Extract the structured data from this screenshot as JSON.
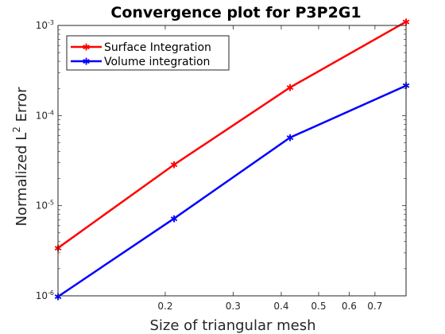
{
  "chart_data": {
    "type": "line",
    "title": "Convergence plot for P3P2G1",
    "xlabel": "Size of triangular mesh",
    "ylabel_main": "Normalized L",
    "ylabel_sup": "2",
    "ylabel_tail": " Error",
    "xscale": "log",
    "yscale": "log",
    "xlim": [
      0.1054,
      0.843
    ],
    "ylim": [
      1e-06,
      0.001
    ],
    "x_tick_values": [
      0.2,
      0.3,
      0.4,
      0.5,
      0.6,
      0.7
    ],
    "x_tick_labels": [
      "0.2",
      "0.3",
      "0.4",
      "0.5",
      "0.6",
      "0.7"
    ],
    "y_ticks": [
      {
        "value": 1e-06,
        "base": "10",
        "exp": "-6"
      },
      {
        "value": 1e-05,
        "base": "10",
        "exp": "-5"
      },
      {
        "value": 0.0001,
        "base": "10",
        "exp": "-4"
      },
      {
        "value": 0.001,
        "base": "10",
        "exp": "-3"
      }
    ],
    "legend_position": "top-left",
    "grid": false,
    "series": [
      {
        "name": "Surface Integration",
        "color": "#ff0000",
        "x": [
          0.1054,
          0.2108,
          0.4216,
          0.843
        ],
        "y": [
          3.4e-06,
          2.85e-05,
          0.000205,
          0.0011
        ]
      },
      {
        "name": "Volume integration",
        "color": "#0000ff",
        "x": [
          0.1054,
          0.2108,
          0.4216,
          0.843
        ],
        "y": [
          9.8e-07,
          7.2e-06,
          5.7e-05,
          0.000215
        ]
      }
    ]
  }
}
